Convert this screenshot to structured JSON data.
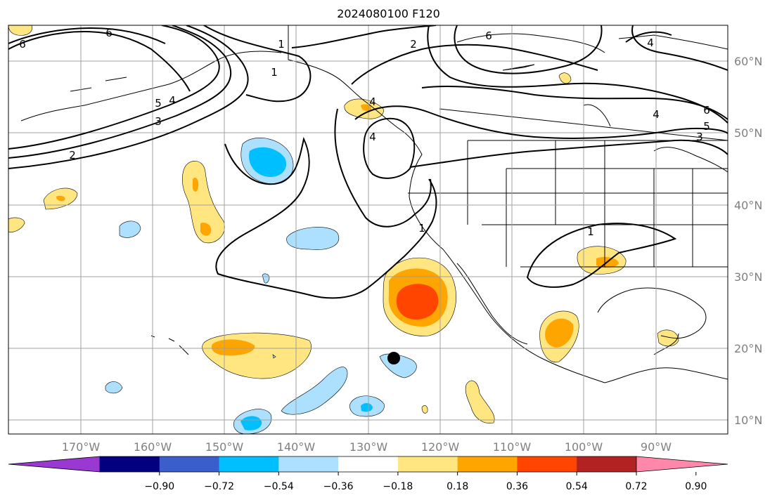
{
  "title": "2024080100 F120",
  "lon_labels": [
    "170°W",
    "160°W",
    "150°W",
    "140°W",
    "130°W",
    "120°W",
    "110°W",
    "100°W",
    "90°W"
  ],
  "lat_labels": [
    "60°N",
    "50°N",
    "40°N",
    "30°N",
    "20°N",
    "10°N"
  ],
  "colorbar": {
    "ticks": [
      "−0.90",
      "−0.72",
      "−0.54",
      "−0.36",
      "−0.18",
      "0.18",
      "0.36",
      "0.54",
      "0.72",
      "0.90"
    ],
    "colors": [
      "#9a38d2",
      "#02007e",
      "#3a5fcd",
      "#00bfff",
      "#addfff",
      "#ffffff",
      "#ffe680",
      "#ffa500",
      "#ff4500",
      "#b22222",
      "#ff88aa"
    ]
  },
  "contour_labels": [
    "6",
    "6",
    "5",
    "4",
    "3",
    "2",
    "1",
    "1",
    "2",
    "4",
    "6",
    "4",
    "5",
    "6",
    "4",
    "3",
    "1",
    "1",
    "4"
  ],
  "marker": "point-marker"
}
